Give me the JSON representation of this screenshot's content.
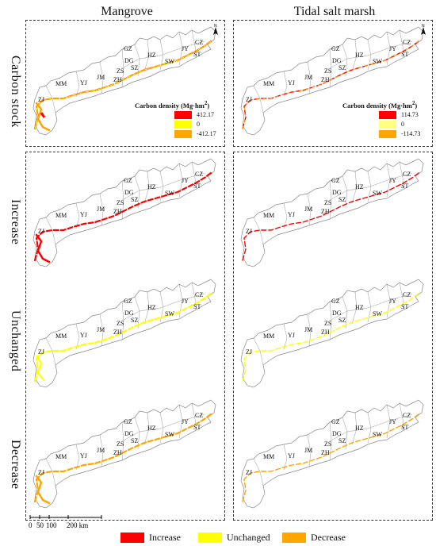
{
  "columns": [
    "Mangrove",
    "Tidal salt marsh"
  ],
  "rows": [
    "Carbon stock",
    "Increase",
    "Unchanged",
    "Decrease"
  ],
  "regions": [
    "GZ",
    "HZ",
    "DG",
    "JY",
    "CZ",
    "ST",
    "SW",
    "SZ",
    "ZS",
    "ZH",
    "JM",
    "YJ",
    "MM",
    "ZJ"
  ],
  "north_label": "N",
  "legend_mangrove": {
    "title": "Carbon density (Mg·hm",
    "title_sup": "2",
    "title_end": ")",
    "items": [
      {
        "value": "412.17",
        "color": "#ff0000"
      },
      {
        "value": "0",
        "color": "#ffff00"
      },
      {
        "value": "-412.17",
        "color": "#ffa500"
      }
    ]
  },
  "legend_marsh": {
    "title": "Carbon density (Mg·hm",
    "title_sup": "2",
    "title_end": ")",
    "items": [
      {
        "value": "114.73",
        "color": "#ff0000"
      },
      {
        "value": "0",
        "color": "#ffff80"
      },
      {
        "value": "-114.73",
        "color": "#ffa500"
      }
    ]
  },
  "scale": {
    "ticks": [
      "0",
      "50",
      "100",
      "200 km"
    ]
  },
  "bottom_legend": [
    {
      "label": "Increase",
      "color": "#ff0000"
    },
    {
      "label": "Unchanged",
      "color": "#ffff00"
    },
    {
      "label": "Decrease",
      "color": "#ffa500"
    }
  ],
  "colors": {
    "increase": "#ff0000",
    "unchanged": "#ffff00",
    "decrease": "#ffa500"
  }
}
